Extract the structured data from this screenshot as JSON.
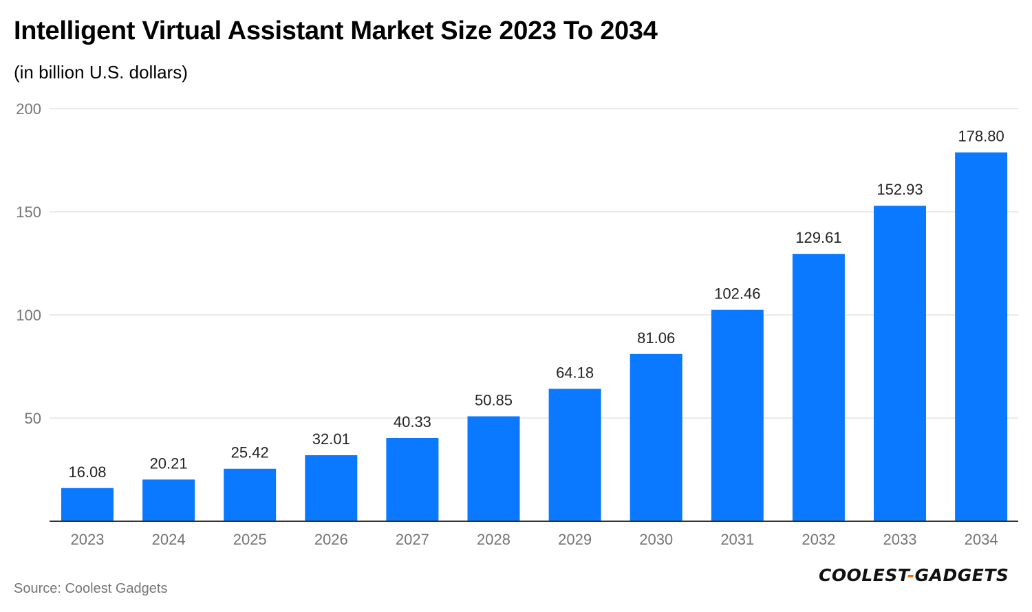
{
  "header": {
    "title": "Intelligent Virtual Assistant Market Size 2023 To 2034",
    "subtitle": "(in billion U.S. dollars)"
  },
  "footer": {
    "source": "Source: Coolest Gadgets",
    "logo_left": "COOLEST",
    "logo_dash": "-",
    "logo_right": "GADGETS"
  },
  "colors": {
    "bar": "#0a79ff",
    "grid": "#e3e3e3",
    "axis": "#333333",
    "tick_label": "#757575",
    "value_label": "#222222",
    "logo_accent": "#ff6a00"
  },
  "chart_data": {
    "type": "bar",
    "title": "Intelligent Virtual Assistant Market Size 2023 To 2034",
    "subtitle": "(in billion U.S. dollars)",
    "categories": [
      "2023",
      "2024",
      "2025",
      "2026",
      "2027",
      "2028",
      "2029",
      "2030",
      "2031",
      "2032",
      "2033",
      "2034"
    ],
    "values": [
      16.08,
      20.21,
      25.42,
      32.01,
      40.33,
      50.85,
      64.18,
      81.06,
      102.46,
      129.61,
      152.93,
      178.8
    ],
    "value_labels": [
      "16.08",
      "20.21",
      "25.42",
      "32.01",
      "40.33",
      "50.85",
      "64.18",
      "81.06",
      "102.46",
      "129.61",
      "152.93",
      "178.80"
    ],
    "ylim": [
      0,
      200
    ],
    "yticks": [
      50,
      100,
      150,
      200
    ],
    "grid": true,
    "legend": "none",
    "xlabel": "",
    "ylabel": ""
  }
}
